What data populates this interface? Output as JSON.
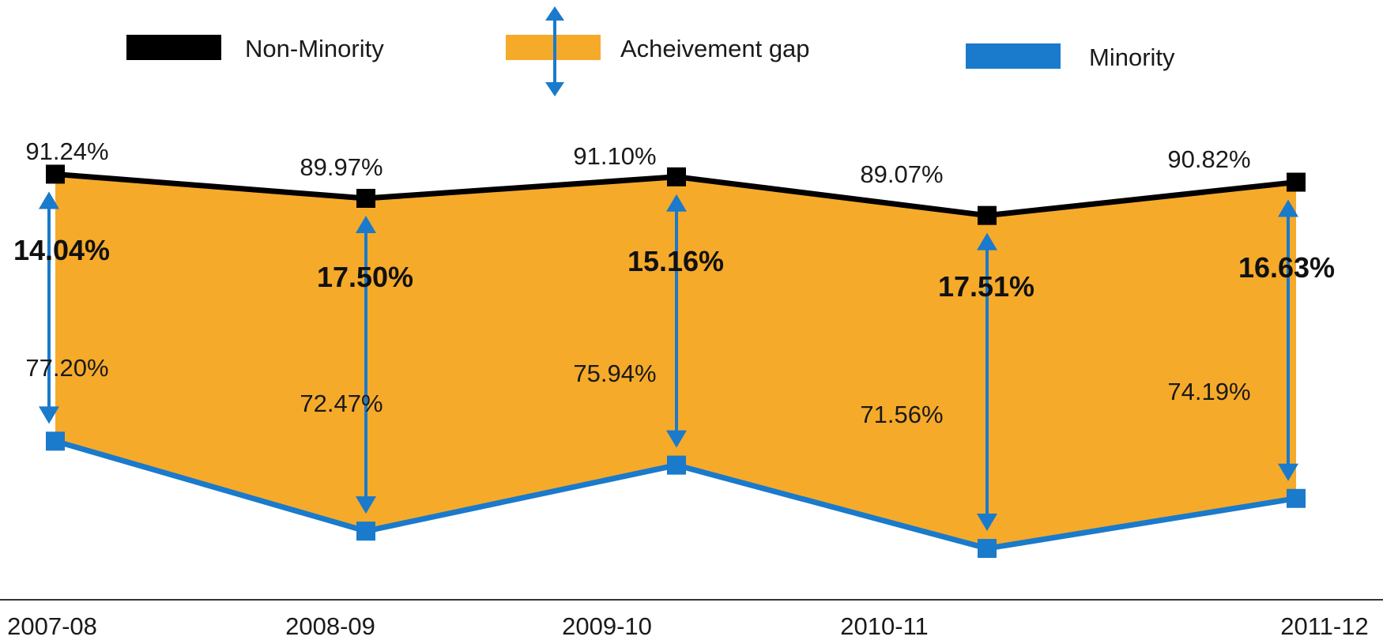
{
  "chart_data": {
    "type": "line",
    "categories": [
      "2007-08",
      "2008-09",
      "2009-10",
      "2010-11",
      "2011-12"
    ],
    "series": [
      {
        "name": "Non-Minority",
        "values": [
          91.24,
          89.97,
          91.1,
          89.07,
          90.82
        ],
        "color": "#000000",
        "labels": [
          "91.24%",
          "89.97%",
          "91.10%",
          "89.07%",
          "90.82%"
        ]
      },
      {
        "name": "Minority",
        "values": [
          77.2,
          72.47,
          75.94,
          71.56,
          74.19
        ],
        "color": "#1a7acb",
        "labels": [
          "77.20%",
          "72.47%",
          "75.94%",
          "71.56%",
          "74.19%"
        ]
      }
    ],
    "gap": {
      "name": "Acheivement gap",
      "values": [
        14.04,
        17.5,
        15.16,
        17.51,
        16.63
      ],
      "labels": [
        "14.04%",
        "17.50%",
        "15.16%",
        "17.51%",
        "16.63%"
      ],
      "fill_color": "#f6aa2a",
      "arrow_color": "#1a7acb"
    },
    "ylim": [
      57.6,
      100.4
    ],
    "legend_position": "top",
    "grid": false
  }
}
